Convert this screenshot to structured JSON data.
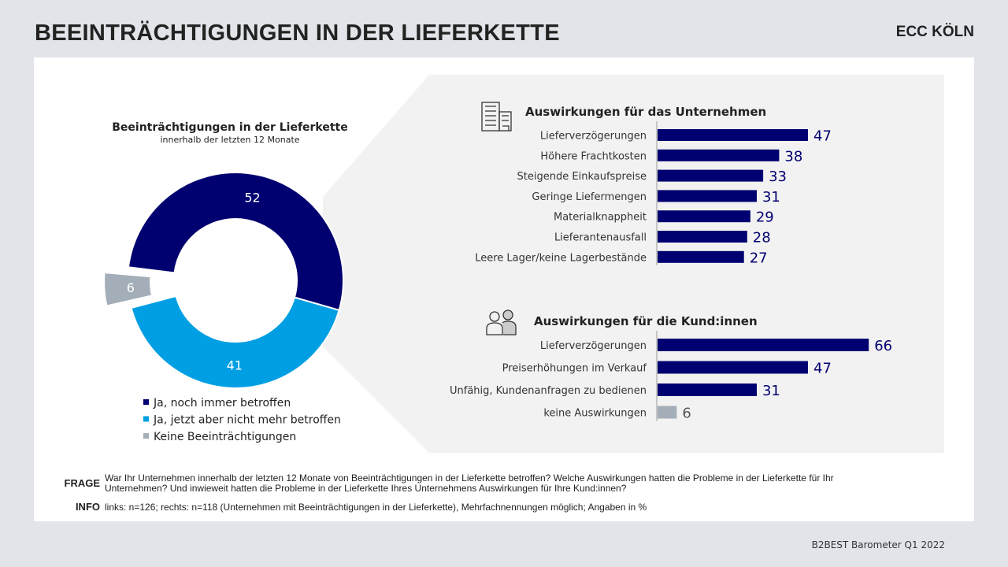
{
  "header": {
    "title": "BEEINTRÄCHTIGUNGEN IN DER LIEFERKETTE",
    "logo": "ECC KÖLN"
  },
  "source": "B2BEST Barometer Q1 2022",
  "footer": {
    "frage_label": "FRAGE",
    "frage_line1": "War Ihr Unternehmen innerhalb der letzten 12 Monate von Beeinträchtigungen in der Lieferkette betroffen? Welche Auswirkungen hatten die Probleme in der Lieferkette für Ihr",
    "frage_line2": "Unternehmen? Und inwieweit hatten die Probleme in der Lieferkette Ihres Unternehmens Auswirkungen für Ihre Kund:innen?",
    "info_label": "INFO",
    "info": "links: n=126; rechts: n=118 (Unternehmen mit Beeinträchtigungen in der Lieferkette), Mehrfachnennungen möglich; Angaben in %"
  },
  "colors": {
    "navy": "#000070",
    "lightblue": "#009fe3",
    "grey": "#a3aeb8",
    "panel": "#f2f2f2"
  },
  "chart_data": [
    {
      "type": "pie",
      "title": "Beeinträchtigungen in der Lieferkette",
      "subtitle": "innerhalb der letzten 12 Monate",
      "donut": true,
      "categories": [
        "Ja, noch immer betroffen",
        "Ja, jetzt aber nicht mehr betroffen",
        "Keine Beeinträchtigungen"
      ],
      "values": [
        52,
        41,
        6
      ],
      "colors": [
        "#000070",
        "#009fe3",
        "#a3aeb8"
      ],
      "legend": "bottom"
    },
    {
      "type": "bar",
      "orientation": "horizontal",
      "title": "Auswirkungen für das Unternehmen",
      "icon": "building-icon",
      "categories": [
        "Lieferverzögerungen",
        "Höhere Frachtkosten",
        "Steigende Einkaufspreise",
        "Geringe Liefermengen",
        "Materialknappheit",
        "Lieferantenausfall",
        "Leere Lager/keine Lagerbestände"
      ],
      "values": [
        47,
        38,
        33,
        31,
        29,
        28,
        27
      ],
      "colors": [
        "#000070",
        "#000070",
        "#000070",
        "#000070",
        "#000070",
        "#000070",
        "#000070"
      ]
    },
    {
      "type": "bar",
      "orientation": "horizontal",
      "title": "Auswirkungen für die Kund:innen",
      "icon": "people-icon",
      "categories": [
        "Lieferverzögerungen",
        "Preiserhöhungen im Verkauf",
        "Unfähig, Kundenanfragen zu bedienen",
        "keine Auswirkungen"
      ],
      "values": [
        66,
        47,
        31,
        6
      ],
      "colors": [
        "#000070",
        "#000070",
        "#000070",
        "#a3aeb8"
      ]
    }
  ]
}
